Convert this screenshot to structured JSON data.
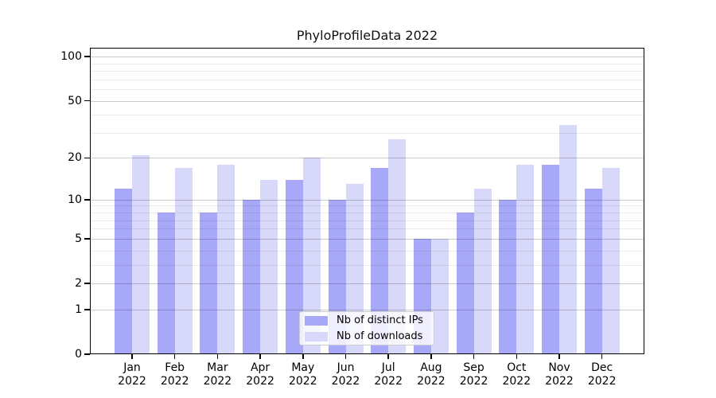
{
  "title": "PhyloProfileData 2022",
  "chart_data": {
    "type": "bar",
    "title": "PhyloProfileData 2022",
    "categories": [
      "Jan",
      "Feb",
      "Mar",
      "Apr",
      "May",
      "Jun",
      "Jul",
      "Aug",
      "Sep",
      "Oct",
      "Nov",
      "Dec"
    ],
    "x_sublabel": "2022",
    "series": [
      {
        "name": "Nb of distinct IPs",
        "color": "#a8a8f8",
        "values": [
          12,
          8,
          8,
          10,
          14,
          10,
          17,
          5,
          8,
          10,
          18,
          12
        ]
      },
      {
        "name": "Nb of downloads",
        "color": "#d8d8fa",
        "values": [
          21,
          17,
          18,
          14,
          20,
          13,
          27,
          5,
          12,
          18,
          34,
          17
        ]
      }
    ],
    "y_scale": "log1p",
    "ylim": [
      0,
      116
    ],
    "y_major_ticks": [
      100,
      50,
      20,
      10,
      5,
      2,
      1,
      0
    ],
    "y_minor_gridlines": [
      90,
      80,
      70,
      60,
      40,
      30,
      9,
      8,
      7,
      6,
      4,
      3
    ],
    "grid": true,
    "legend_position": "lower center inside",
    "bar_colors": {
      "distinct_ips": "#a8a8f8",
      "downloads": "#d8d8fa"
    },
    "grid_colors": {
      "major": "rgba(0,0,0,0.20)",
      "minor": "rgba(0,0,0,0.075)"
    }
  }
}
